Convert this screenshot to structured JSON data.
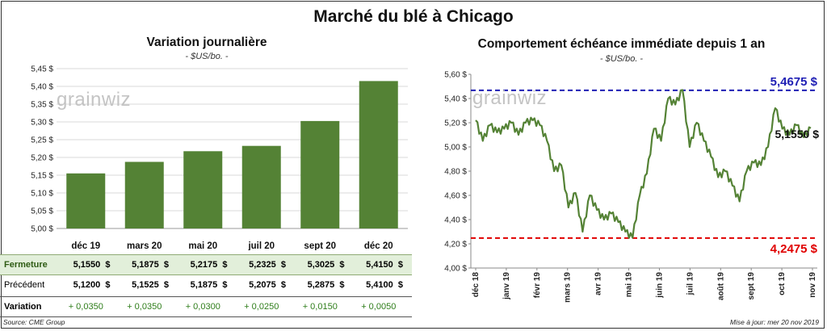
{
  "main_title": "Marché du blé à Chicago",
  "left_panel": {
    "title": "Variation journalière",
    "subtitle": "- $US/bo. -",
    "logo": "grainwiz"
  },
  "right_panel": {
    "title": "Comportement échéance immédiate depuis 1 an",
    "subtitle": "- $US/bo. -",
    "logo": "grainwiz"
  },
  "chart_data": [
    {
      "type": "bar",
      "title": "Variation journalière",
      "subtitle": "- $US/bo. -",
      "categories": [
        "déc 19",
        "mars 20",
        "mai 20",
        "juil 20",
        "sept 20",
        "déc 20"
      ],
      "values": [
        5.155,
        5.1875,
        5.2175,
        5.2325,
        5.3025,
        5.415
      ],
      "ylim": [
        5.0,
        5.45
      ],
      "yticks": [
        "5,00 $",
        "5,05 $",
        "5,10 $",
        "5,15 $",
        "5,20 $",
        "5,25 $",
        "5,30 $",
        "5,35 $",
        "5,40 $",
        "5,45 $"
      ],
      "grid": true,
      "bar_color": "#548235"
    },
    {
      "type": "line",
      "title": "Comportement échéance immédiate depuis 1 an",
      "subtitle": "- $US/bo. -",
      "ylim": [
        4.0,
        5.6
      ],
      "yticks": [
        "4,00 $",
        "4,20 $",
        "4,40 $",
        "4,60 $",
        "4,80 $",
        "5,00 $",
        "5,20 $",
        "5,40 $",
        "5,60 $"
      ],
      "xticks": [
        "déc 18",
        "janv 19",
        "févr 19",
        "mars 19",
        "avr 19",
        "mai 19",
        "juin 19",
        "juil 19",
        "août 19",
        "sept 19",
        "oct 19",
        "nov 19"
      ],
      "x": [
        "déc 18",
        "déc 18",
        "déc 18",
        "déc 18",
        "janv 19",
        "janv 19",
        "janv 19",
        "janv 19",
        "févr 19",
        "févr 19",
        "févr 19",
        "févr 19",
        "févr 19",
        "mars 19",
        "mars 19",
        "mars 19",
        "mars 19",
        "avr 19",
        "avr 19",
        "avr 19",
        "avr 19",
        "mai 19",
        "mai 19",
        "mai 19",
        "mai 19",
        "juin 19",
        "juin 19",
        "juin 19",
        "juin 19",
        "juil 19",
        "juil 19",
        "juil 19",
        "juil 19",
        "août 19",
        "août 19",
        "août 19",
        "août 19",
        "sept 19",
        "sept 19",
        "sept 19",
        "sept 19",
        "oct 19",
        "oct 19",
        "oct 19",
        "oct 19",
        "nov 19",
        "nov 19",
        "nov 19"
      ],
      "y": [
        5.22,
        5.05,
        5.18,
        5.12,
        5.15,
        5.2,
        5.1,
        5.2,
        5.22,
        5.18,
        5.05,
        4.8,
        4.85,
        4.5,
        4.62,
        4.3,
        4.6,
        4.48,
        4.4,
        4.45,
        4.38,
        4.3,
        4.25,
        4.6,
        4.78,
        5.15,
        5.05,
        5.4,
        5.35,
        5.47,
        5.0,
        5.2,
        5.05,
        4.92,
        4.75,
        4.8,
        4.68,
        4.55,
        4.8,
        4.87,
        4.85,
        5.0,
        5.32,
        5.15,
        5.1,
        5.18,
        5.08,
        5.155
      ],
      "line_color": "#548235",
      "reference_lines": [
        {
          "label": "5,4675 $",
          "value": 5.4675,
          "color": "#1f1fb4"
        },
        {
          "label": "4,2475 $",
          "value": 4.2475,
          "color": "#e00000"
        }
      ],
      "last_label": "5,1550 $"
    }
  ],
  "table": {
    "rows": [
      {
        "label": "Fermeture",
        "values": [
          "5,1550  $",
          "5,1875  $",
          "5,2175  $",
          "5,2325  $",
          "5,3025  $",
          "5,4150  $"
        ]
      },
      {
        "label": "Précédent",
        "values": [
          "5,1200  $",
          "5,1525  $",
          "5,1875  $",
          "5,2075  $",
          "5,2875  $",
          "5,4100  $"
        ]
      },
      {
        "label": "Variation",
        "values": [
          "+ 0,0350",
          "+ 0,0350",
          "+ 0,0300",
          "+ 0,0250",
          "+ 0,0150",
          "+ 0,0050"
        ]
      }
    ]
  },
  "footer": {
    "source": "Source: CME Group",
    "updated": "Mise à jour: mer 20 nov 2019"
  },
  "colors": {
    "bar": "#548235",
    "table_highlight": "#e2efda",
    "variation_text": "#2e7d1a",
    "high_line": "#1f1fb4",
    "low_line": "#e00000"
  }
}
